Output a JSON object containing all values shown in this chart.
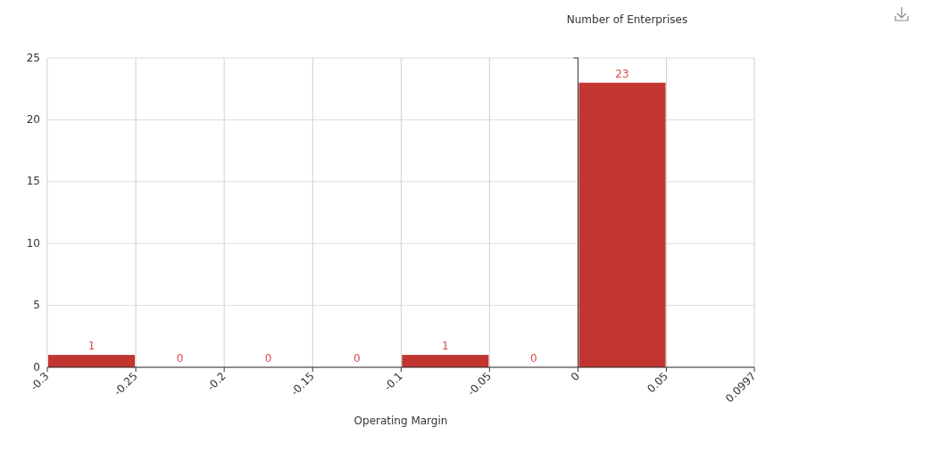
{
  "chart_data": {
    "type": "histogram",
    "ylabel": "Number of Enterprises",
    "xlabel": "Operating Margin",
    "bins": [
      -0.3,
      -0.25,
      -0.2,
      -0.15,
      -0.1,
      -0.05,
      0,
      0.05
    ],
    "values": [
      1,
      0,
      0,
      0,
      1,
      0,
      23
    ],
    "color": "#c23531",
    "xlim": [
      -0.3,
      0.0997
    ],
    "xticks": [
      -0.3,
      -0.25,
      -0.2,
      -0.15,
      -0.1,
      -0.05,
      0,
      0.05,
      0.0997
    ],
    "ylim": [
      0,
      25
    ],
    "yticks": [
      0,
      5,
      10,
      15,
      20,
      25
    ],
    "grid": true,
    "data_labels": true
  }
}
